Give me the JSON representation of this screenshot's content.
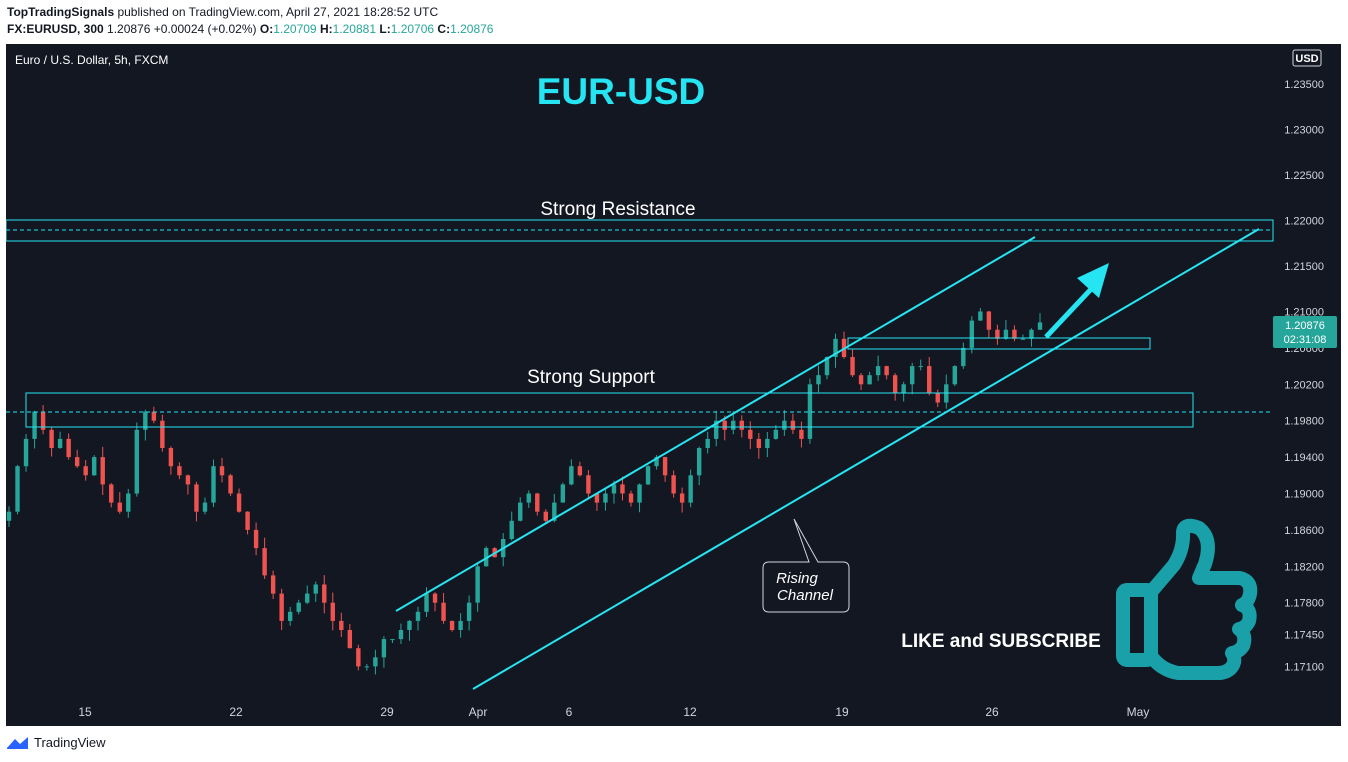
{
  "header": {
    "author": "TopTradingSignals",
    "published_text": " published on TradingView.com, April 27, 2021 18:28:52 UTC",
    "symbol": "FX:EURUSD, 300",
    "last": "1.20876",
    "change": "+0.00024 (+0.02%)",
    "o_label": "O:",
    "o_value": "1.20709",
    "h_label": "H:",
    "h_value": "1.20881",
    "l_label": "L:",
    "l_value": "1.20706",
    "c_label": "C:",
    "c_value": "1.20876"
  },
  "chart": {
    "symbol_label": "Euro / U.S. Dollar, 5h, FXCM",
    "currency_badge": "USD",
    "big_title": "EUR-USD",
    "resistance_label": "Strong Resistance",
    "support_label": "Strong Support",
    "callout_line1": "Rising",
    "callout_line2": "Channel",
    "cta_text": "LIKE and SUBSCRIBE",
    "price_tag": "1.20876",
    "countdown_tag": "02:31:08",
    "price_ticks": [
      "1.23500",
      "1.23000",
      "1.22500",
      "1.22000",
      "1.21500",
      "1.21000",
      "1.20600",
      "1.20200",
      "1.19800",
      "1.19400",
      "1.19000",
      "1.18600",
      "1.18200",
      "1.17800",
      "1.17450",
      "1.17100"
    ],
    "time_ticks": [
      "15",
      "22",
      "29",
      "Apr",
      "6",
      "12",
      "19",
      "26",
      "May"
    ],
    "colors": {
      "background": "#131722",
      "up": "#26a69a",
      "down": "#ef5350",
      "annotation": "#26e5f2",
      "thumb": "#1aa0a8",
      "text": "#d1d4dc"
    }
  },
  "chart_data": {
    "type": "candlestick",
    "title": "EUR-USD",
    "x_range": [
      "15",
      "May"
    ],
    "ylim": [
      1.17,
      1.236
    ],
    "x": [
      "15",
      "22",
      "29",
      "Apr",
      "6",
      "12",
      "19",
      "26",
      "May"
    ],
    "resistance_zone": [
      1.2178,
      1.2199
    ],
    "support_zone": [
      1.1978,
      1.2015
    ],
    "last_price": 1.20876,
    "path_close": [
      1.188,
      1.193,
      1.196,
      1.199,
      1.197,
      1.195,
      1.196,
      1.194,
      1.193,
      1.192,
      1.194,
      1.191,
      1.189,
      1.188,
      1.19,
      1.197,
      1.199,
      1.198,
      1.195,
      1.193,
      1.192,
      1.191,
      1.188,
      1.189,
      1.193,
      1.192,
      1.19,
      1.188,
      1.186,
      1.184,
      1.181,
      1.179,
      1.176,
      1.177,
      1.178,
      1.179,
      1.18,
      1.178,
      1.176,
      1.175,
      1.173,
      1.171,
      1.171,
      1.172,
      1.174,
      1.174,
      1.175,
      1.176,
      1.177,
      1.179,
      1.178,
      1.176,
      1.175,
      1.176,
      1.178,
      1.182,
      1.184,
      1.183,
      1.185,
      1.187,
      1.189,
      1.19,
      1.188,
      1.187,
      1.189,
      1.191,
      1.193,
      1.192,
      1.19,
      1.189,
      1.19,
      1.191,
      1.19,
      1.189,
      1.191,
      1.193,
      1.194,
      1.192,
      1.19,
      1.189,
      1.192,
      1.195,
      1.196,
      1.198,
      1.197,
      1.198,
      1.197,
      1.196,
      1.195,
      1.196,
      1.197,
      1.198,
      1.197,
      1.196,
      1.202,
      1.203,
      1.205,
      1.207,
      1.205,
      1.203,
      1.202,
      1.203,
      1.204,
      1.203,
      1.201,
      1.202,
      1.204,
      1.204,
      1.201,
      1.2,
      1.202,
      1.204,
      1.206,
      1.209,
      1.21,
      1.208,
      1.207,
      1.208,
      1.207,
      1.207,
      1.208,
      1.2088
    ]
  }
}
